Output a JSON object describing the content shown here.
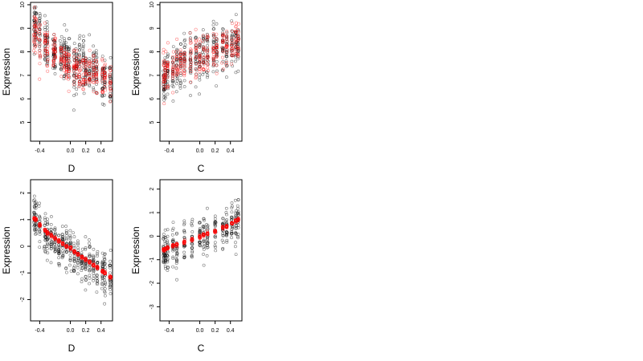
{
  "chart_data": [
    {
      "type": "scatter",
      "xlabel": "D",
      "ylabel": "Expression",
      "xticks": [
        "-0.4",
        "0.0",
        "0.2",
        "0.4"
      ],
      "xtick_values": [
        -0.4,
        0.0,
        0.2,
        0.4
      ],
      "yticks": [
        "5",
        "6",
        "7",
        "8",
        "9",
        "10"
      ],
      "ytick_values": [
        5,
        6,
        7,
        8,
        9,
        10
      ],
      "xlim": [
        -0.52,
        0.55
      ],
      "ylim": [
        4.2,
        10.1
      ],
      "colors": {
        "observed": "#000000",
        "fitted": "#ff0000"
      },
      "group_x": [
        -0.47,
        -0.45,
        -0.4,
        -0.33,
        -0.3,
        -0.22,
        -0.2,
        -0.12,
        -0.08,
        -0.05,
        -0.02,
        0.05,
        0.08,
        0.12,
        0.17,
        0.2,
        0.25,
        0.3,
        0.34,
        0.42,
        0.45,
        0.52
      ],
      "observed_center": [
        9.2,
        8.9,
        8.8,
        8.3,
        8.2,
        8.0,
        7.9,
        7.9,
        8.0,
        7.8,
        7.7,
        7.2,
        7.5,
        7.6,
        7.5,
        7.2,
        7.1,
        7.2,
        7.0,
        6.6,
        7.0,
        6.8
      ],
      "observed_spread": 0.9,
      "fitted_center": [
        8.9,
        8.8,
        8.5,
        8.3,
        8.1,
        7.9,
        7.9,
        7.7,
        7.6,
        7.5,
        7.5,
        7.3,
        7.3,
        7.2,
        7.2,
        7.2,
        7.1,
        7.1,
        7.0,
        6.9,
        6.9,
        6.8
      ],
      "fitted_spread": 0.75
    },
    {
      "type": "scatter",
      "xlabel": "C",
      "ylabel": "Expression",
      "xticks": [
        "-0.4",
        "0.0",
        "0.2",
        "0.4"
      ],
      "xtick_values": [
        -0.4,
        0.0,
        0.2,
        0.4
      ],
      "yticks": [
        "5",
        "6",
        "7",
        "8",
        "9",
        "10"
      ],
      "ytick_values": [
        5,
        6,
        7,
        8,
        9,
        10
      ],
      "xlim": [
        -0.52,
        0.55
      ],
      "ylim": [
        4.2,
        10.1
      ],
      "colors": {
        "observed": "#000000",
        "fitted": "#ff0000"
      },
      "group_x": [
        -0.47,
        -0.45,
        -0.42,
        -0.35,
        -0.3,
        -0.25,
        -0.2,
        -0.12,
        -0.05,
        0.0,
        0.05,
        0.1,
        0.18,
        0.22,
        0.3,
        0.35,
        0.42,
        0.47,
        0.5
      ],
      "observed_center": [
        6.5,
        6.8,
        7.0,
        7.2,
        7.4,
        7.5,
        7.7,
        7.7,
        7.8,
        7.6,
        7.9,
        8.0,
        8.2,
        8.0,
        8.3,
        8.1,
        8.2,
        8.3,
        8.4
      ],
      "observed_spread": 0.9,
      "fitted_center": [
        6.9,
        7.0,
        7.1,
        7.2,
        7.4,
        7.5,
        7.6,
        7.7,
        7.8,
        7.8,
        7.9,
        8.0,
        8.1,
        8.1,
        8.2,
        8.2,
        8.3,
        8.3,
        8.3
      ],
      "fitted_spread": 0.8
    },
    {
      "type": "scatter",
      "xlabel": "D",
      "ylabel": "Expression",
      "xticks": [
        "-0.4",
        "0.0",
        "0.2",
        "0.4"
      ],
      "xtick_values": [
        -0.4,
        0.0,
        0.2,
        0.4
      ],
      "yticks": [
        "-2",
        "-1",
        "0",
        "1",
        "2"
      ],
      "ytick_values": [
        -2,
        -1,
        0,
        1,
        2
      ],
      "xlim": [
        -0.52,
        0.55
      ],
      "ylim": [
        -2.8,
        2.5
      ],
      "colors": {
        "observed": "#000000",
        "fitted": "#ff0000"
      },
      "group_x": [
        -0.47,
        -0.45,
        -0.4,
        -0.33,
        -0.3,
        -0.25,
        -0.2,
        -0.15,
        -0.1,
        -0.05,
        0.0,
        0.05,
        0.1,
        0.15,
        0.2,
        0.25,
        0.3,
        0.35,
        0.42,
        0.45,
        0.52
      ],
      "observed_center": [
        1.1,
        1.0,
        0.8,
        0.5,
        0.4,
        0.3,
        0.2,
        0.0,
        0.1,
        0.0,
        -0.1,
        -0.3,
        -0.4,
        -0.5,
        -0.6,
        -0.6,
        -0.7,
        -0.8,
        -0.9,
        -1.0,
        -1.2
      ],
      "observed_spread": 0.7,
      "fitted_center": [
        1.05,
        1.0,
        0.8,
        0.6,
        0.5,
        0.4,
        0.3,
        0.2,
        0.1,
        0.0,
        -0.05,
        -0.2,
        -0.3,
        -0.4,
        -0.5,
        -0.6,
        -0.7,
        -0.8,
        -0.95,
        -1.0,
        -1.15
      ],
      "fitted_spread": 0.05
    },
    {
      "type": "scatter",
      "xlabel": "C",
      "ylabel": "Expression",
      "xticks": [
        "-0.4",
        "0.0",
        "0.2",
        "0.4"
      ],
      "xtick_values": [
        -0.4,
        0.0,
        0.2,
        0.4
      ],
      "yticks": [
        "-3",
        "-2",
        "-1",
        "0",
        "1",
        "2"
      ],
      "ytick_values": [
        -3,
        -2,
        -1,
        0,
        1,
        2
      ],
      "xlim": [
        -0.52,
        0.55
      ],
      "ylim": [
        -3.6,
        2.4
      ],
      "colors": {
        "observed": "#000000",
        "fitted": "#ff0000"
      },
      "group_x": [
        -0.47,
        -0.45,
        -0.42,
        -0.35,
        -0.3,
        -0.2,
        -0.1,
        0.0,
        0.05,
        0.1,
        0.2,
        0.3,
        0.35,
        0.42,
        0.47,
        0.5
      ],
      "observed_center": [
        -0.6,
        -0.7,
        -0.6,
        -0.4,
        -0.5,
        -0.3,
        -0.1,
        0.0,
        0.1,
        0.1,
        0.2,
        0.3,
        0.4,
        0.5,
        0.6,
        0.7
      ],
      "observed_spread": 0.8,
      "fitted_center": [
        -0.6,
        -0.55,
        -0.5,
        -0.4,
        -0.35,
        -0.25,
        -0.15,
        -0.05,
        0.05,
        0.1,
        0.2,
        0.35,
        0.4,
        0.55,
        0.65,
        0.7
      ],
      "fitted_spread": 0.06
    }
  ]
}
